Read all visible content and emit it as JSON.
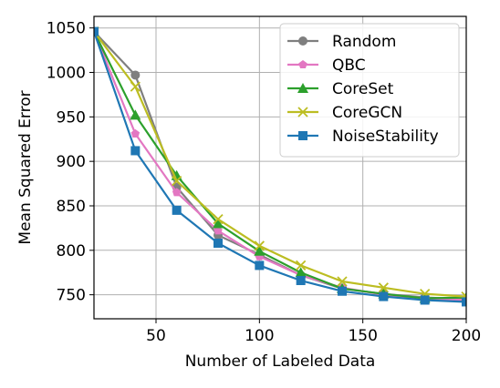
{
  "chart_data": {
    "type": "line",
    "xlabel": "Number of Labeled Data",
    "ylabel": "Mean Squared Error",
    "xlim": [
      20,
      200
    ],
    "ylim": [
      723,
      1063
    ],
    "xticks": [
      50,
      100,
      150,
      200
    ],
    "yticks": [
      750,
      800,
      850,
      900,
      950,
      1000,
      1050
    ],
    "grid": true,
    "legend_position": "top-right",
    "x": [
      20,
      40,
      60,
      80,
      100,
      120,
      140,
      160,
      180,
      200
    ],
    "series": [
      {
        "name": "Random",
        "color": "#7f7f7f",
        "marker": "circle",
        "values": [
          1046,
          997,
          871,
          817,
          795,
          772,
          757,
          751,
          747,
          745
        ]
      },
      {
        "name": "QBC",
        "color": "#e377c2",
        "marker": "pentagon",
        "values": [
          1046,
          931,
          865,
          822,
          793,
          772,
          758,
          750,
          746,
          744
        ]
      },
      {
        "name": "CoreSet",
        "color": "#2ca02c",
        "marker": "triangle",
        "values": [
          1046,
          952,
          884,
          830,
          799,
          775,
          757,
          751,
          746,
          747
        ]
      },
      {
        "name": "CoreGCN",
        "color": "#bcbd22",
        "marker": "x",
        "values": [
          1046,
          984,
          878,
          835,
          805,
          783,
          765,
          758,
          751,
          748
        ]
      },
      {
        "name": "NoiseStability",
        "color": "#1f77b4",
        "marker": "square",
        "values": [
          1046,
          912,
          845,
          808,
          783,
          766,
          754,
          748,
          744,
          742
        ]
      }
    ]
  }
}
